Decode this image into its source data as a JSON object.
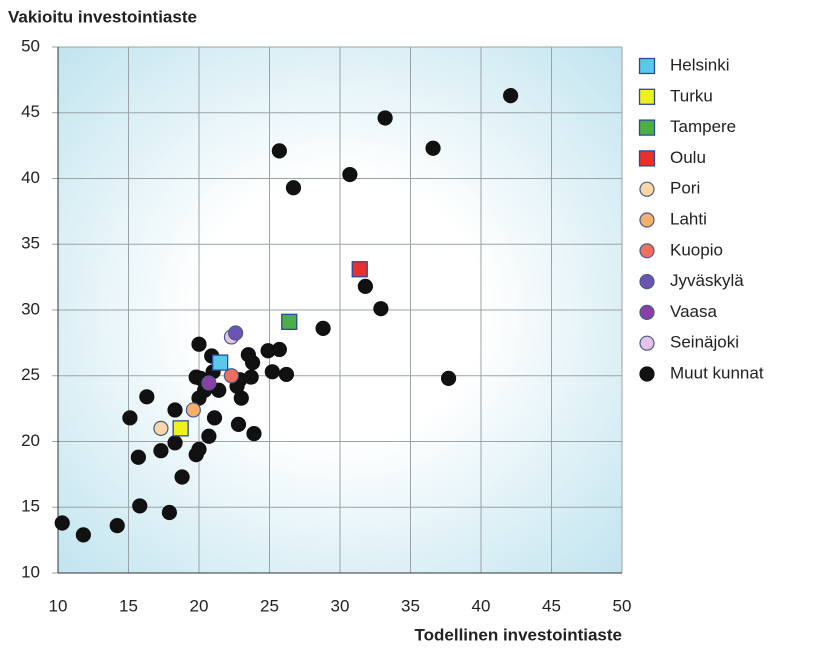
{
  "chart_data": {
    "type": "scatter",
    "y_axis_title": "Vakioitu investointiaste",
    "x_axis_title": "Todellinen investointiaste",
    "xlim": [
      10,
      50
    ],
    "ylim": [
      10,
      50
    ],
    "xticks": [
      10,
      15,
      20,
      25,
      30,
      35,
      40,
      45,
      50
    ],
    "yticks": [
      10,
      15,
      20,
      25,
      30,
      35,
      40,
      45,
      50
    ],
    "grid": true,
    "legend": "right",
    "series": [
      {
        "name": "Helsinki",
        "color": "#5bc8ea",
        "marker": "square",
        "x": [
          21.5
        ],
        "y": [
          26.0
        ]
      },
      {
        "name": "Turku",
        "color": "#f0f01e",
        "marker": "square",
        "x": [
          18.7
        ],
        "y": [
          21.0
        ]
      },
      {
        "name": "Tampere",
        "color": "#4caf45",
        "marker": "square",
        "x": [
          26.4
        ],
        "y": [
          29.1
        ]
      },
      {
        "name": "Oulu",
        "color": "#e8302c",
        "marker": "square",
        "x": [
          31.4
        ],
        "y": [
          33.1
        ]
      },
      {
        "name": "Pori",
        "color": "#fbd7a6",
        "marker": "circle",
        "x": [
          17.3
        ],
        "y": [
          21.0
        ]
      },
      {
        "name": "Lahti",
        "color": "#f5b06a",
        "marker": "circle",
        "x": [
          19.6
        ],
        "y": [
          22.4
        ]
      },
      {
        "name": "Kuopio",
        "color": "#ef6f5a",
        "marker": "circle",
        "x": [
          22.3
        ],
        "y": [
          25.0
        ]
      },
      {
        "name": "Jyväskylä",
        "color": "#6a55b3",
        "marker": "circle",
        "x": [
          22.6
        ],
        "y": [
          28.25
        ]
      },
      {
        "name": "Vaasa",
        "color": "#8a3fa8",
        "marker": "circle",
        "x": [
          20.7
        ],
        "y": [
          24.45
        ]
      },
      {
        "name": "Seinäjoki",
        "color": "#e6c3e6",
        "marker": "circle",
        "x": [
          22.3
        ],
        "y": [
          27.95
        ]
      },
      {
        "name": "Muut kunnat",
        "color": "#111111",
        "marker": "circle",
        "x": [
          10.3,
          11.8,
          14.2,
          15.8,
          17.9,
          18.8,
          15.1,
          16.3,
          15.7,
          17.3,
          18.3,
          18.3,
          19.8,
          20.0,
          20.7,
          21.1,
          20.0,
          19.8,
          20.1,
          20.0,
          20.4,
          20.9,
          21.4,
          21.0,
          22.7,
          23.0,
          22.9,
          23.7,
          23.8,
          23.5,
          24.9,
          25.7,
          25.2,
          26.2,
          22.8,
          23.9,
          28.8,
          31.8,
          32.9,
          37.7,
          25.7,
          26.7,
          30.7,
          33.2,
          36.6,
          42.1
        ],
        "y": [
          13.8,
          12.9,
          13.6,
          15.1,
          14.6,
          17.3,
          21.8,
          23.4,
          18.8,
          19.3,
          22.4,
          19.9,
          19.0,
          19.4,
          20.4,
          21.8,
          27.4,
          24.9,
          24.8,
          23.3,
          23.9,
          26.5,
          23.9,
          25.3,
          24.2,
          23.3,
          24.7,
          24.9,
          26.0,
          26.6,
          26.9,
          27.0,
          25.3,
          25.1,
          21.3,
          20.6,
          28.6,
          31.8,
          30.1,
          24.8,
          42.1,
          39.3,
          40.3,
          44.6,
          42.3,
          46.3
        ]
      }
    ]
  }
}
